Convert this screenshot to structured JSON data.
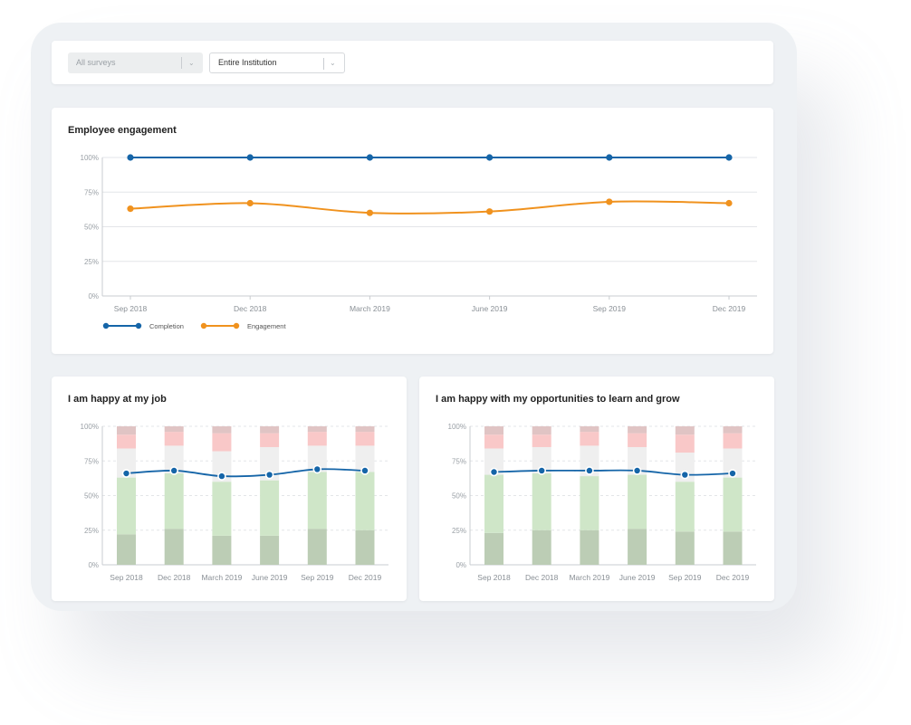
{
  "filters": {
    "survey": {
      "value": "All surveys",
      "icon": "chevron-down-icon"
    },
    "scope": {
      "value": "Entire Institution",
      "icon": "chevron-down-icon"
    }
  },
  "colors": {
    "completion": "#1565a8",
    "engagement": "#f0921e",
    "strong_agree": "#bccdb5",
    "agree": "#cfe6c8",
    "neutral": "#efefef",
    "disagree": "#f9c8c8",
    "strong_disagree": "#e0c4c4",
    "avg_line": "#1565a8"
  },
  "chart_data": [
    {
      "id": "engagement",
      "type": "line",
      "title": "Employee engagement",
      "categories": [
        "Sep 2018",
        "Dec 2018",
        "March 2019",
        "June 2019",
        "Sep 2019",
        "Dec 2019"
      ],
      "ylim": [
        0,
        100
      ],
      "yticks": [
        "0%",
        "25%",
        "50%",
        "75%",
        "100%"
      ],
      "grid": true,
      "legend_position": "bottom-left",
      "series": [
        {
          "name": "Completion",
          "values": [
            100,
            100,
            100,
            100,
            100,
            100
          ]
        },
        {
          "name": "Engagement",
          "values": [
            63,
            67,
            60,
            61,
            68,
            67
          ]
        }
      ]
    },
    {
      "id": "happy-job",
      "type": "bar",
      "stacked": true,
      "title": "I am happy at my job",
      "categories": [
        "Sep 2018",
        "Dec 2018",
        "March 2019",
        "June 2019",
        "Sep 2019",
        "Dec 2019"
      ],
      "ylim": [
        0,
        100
      ],
      "yticks": [
        "0%",
        "25%",
        "50%",
        "75%",
        "100%"
      ],
      "grid": true,
      "segments": [
        [
          22,
          41,
          21,
          10,
          6
        ],
        [
          26,
          40,
          20,
          10,
          4
        ],
        [
          21,
          39,
          22,
          13,
          5
        ],
        [
          21,
          40,
          24,
          10,
          5
        ],
        [
          26,
          41,
          19,
          10,
          4
        ],
        [
          25,
          42,
          19,
          10,
          4
        ]
      ],
      "line": [
        66,
        68,
        64,
        65,
        69,
        68
      ]
    },
    {
      "id": "happy-learn",
      "type": "bar",
      "stacked": true,
      "title": "I am happy with my opportunities to learn and grow",
      "categories": [
        "Sep 2018",
        "Dec 2018",
        "March 2019",
        "June 2019",
        "Sep 2019",
        "Dec 2019"
      ],
      "ylim": [
        0,
        100
      ],
      "yticks": [
        "0%",
        "25%",
        "50%",
        "75%",
        "100%"
      ],
      "grid": true,
      "segments": [
        [
          23,
          42,
          19,
          10,
          6
        ],
        [
          25,
          41,
          19,
          9,
          6
        ],
        [
          25,
          39,
          22,
          10,
          4
        ],
        [
          26,
          39,
          20,
          10,
          5
        ],
        [
          24,
          36,
          21,
          13,
          6
        ],
        [
          24,
          39,
          21,
          11,
          5
        ]
      ],
      "line": [
        67,
        68,
        68,
        68,
        65,
        66
      ]
    }
  ]
}
